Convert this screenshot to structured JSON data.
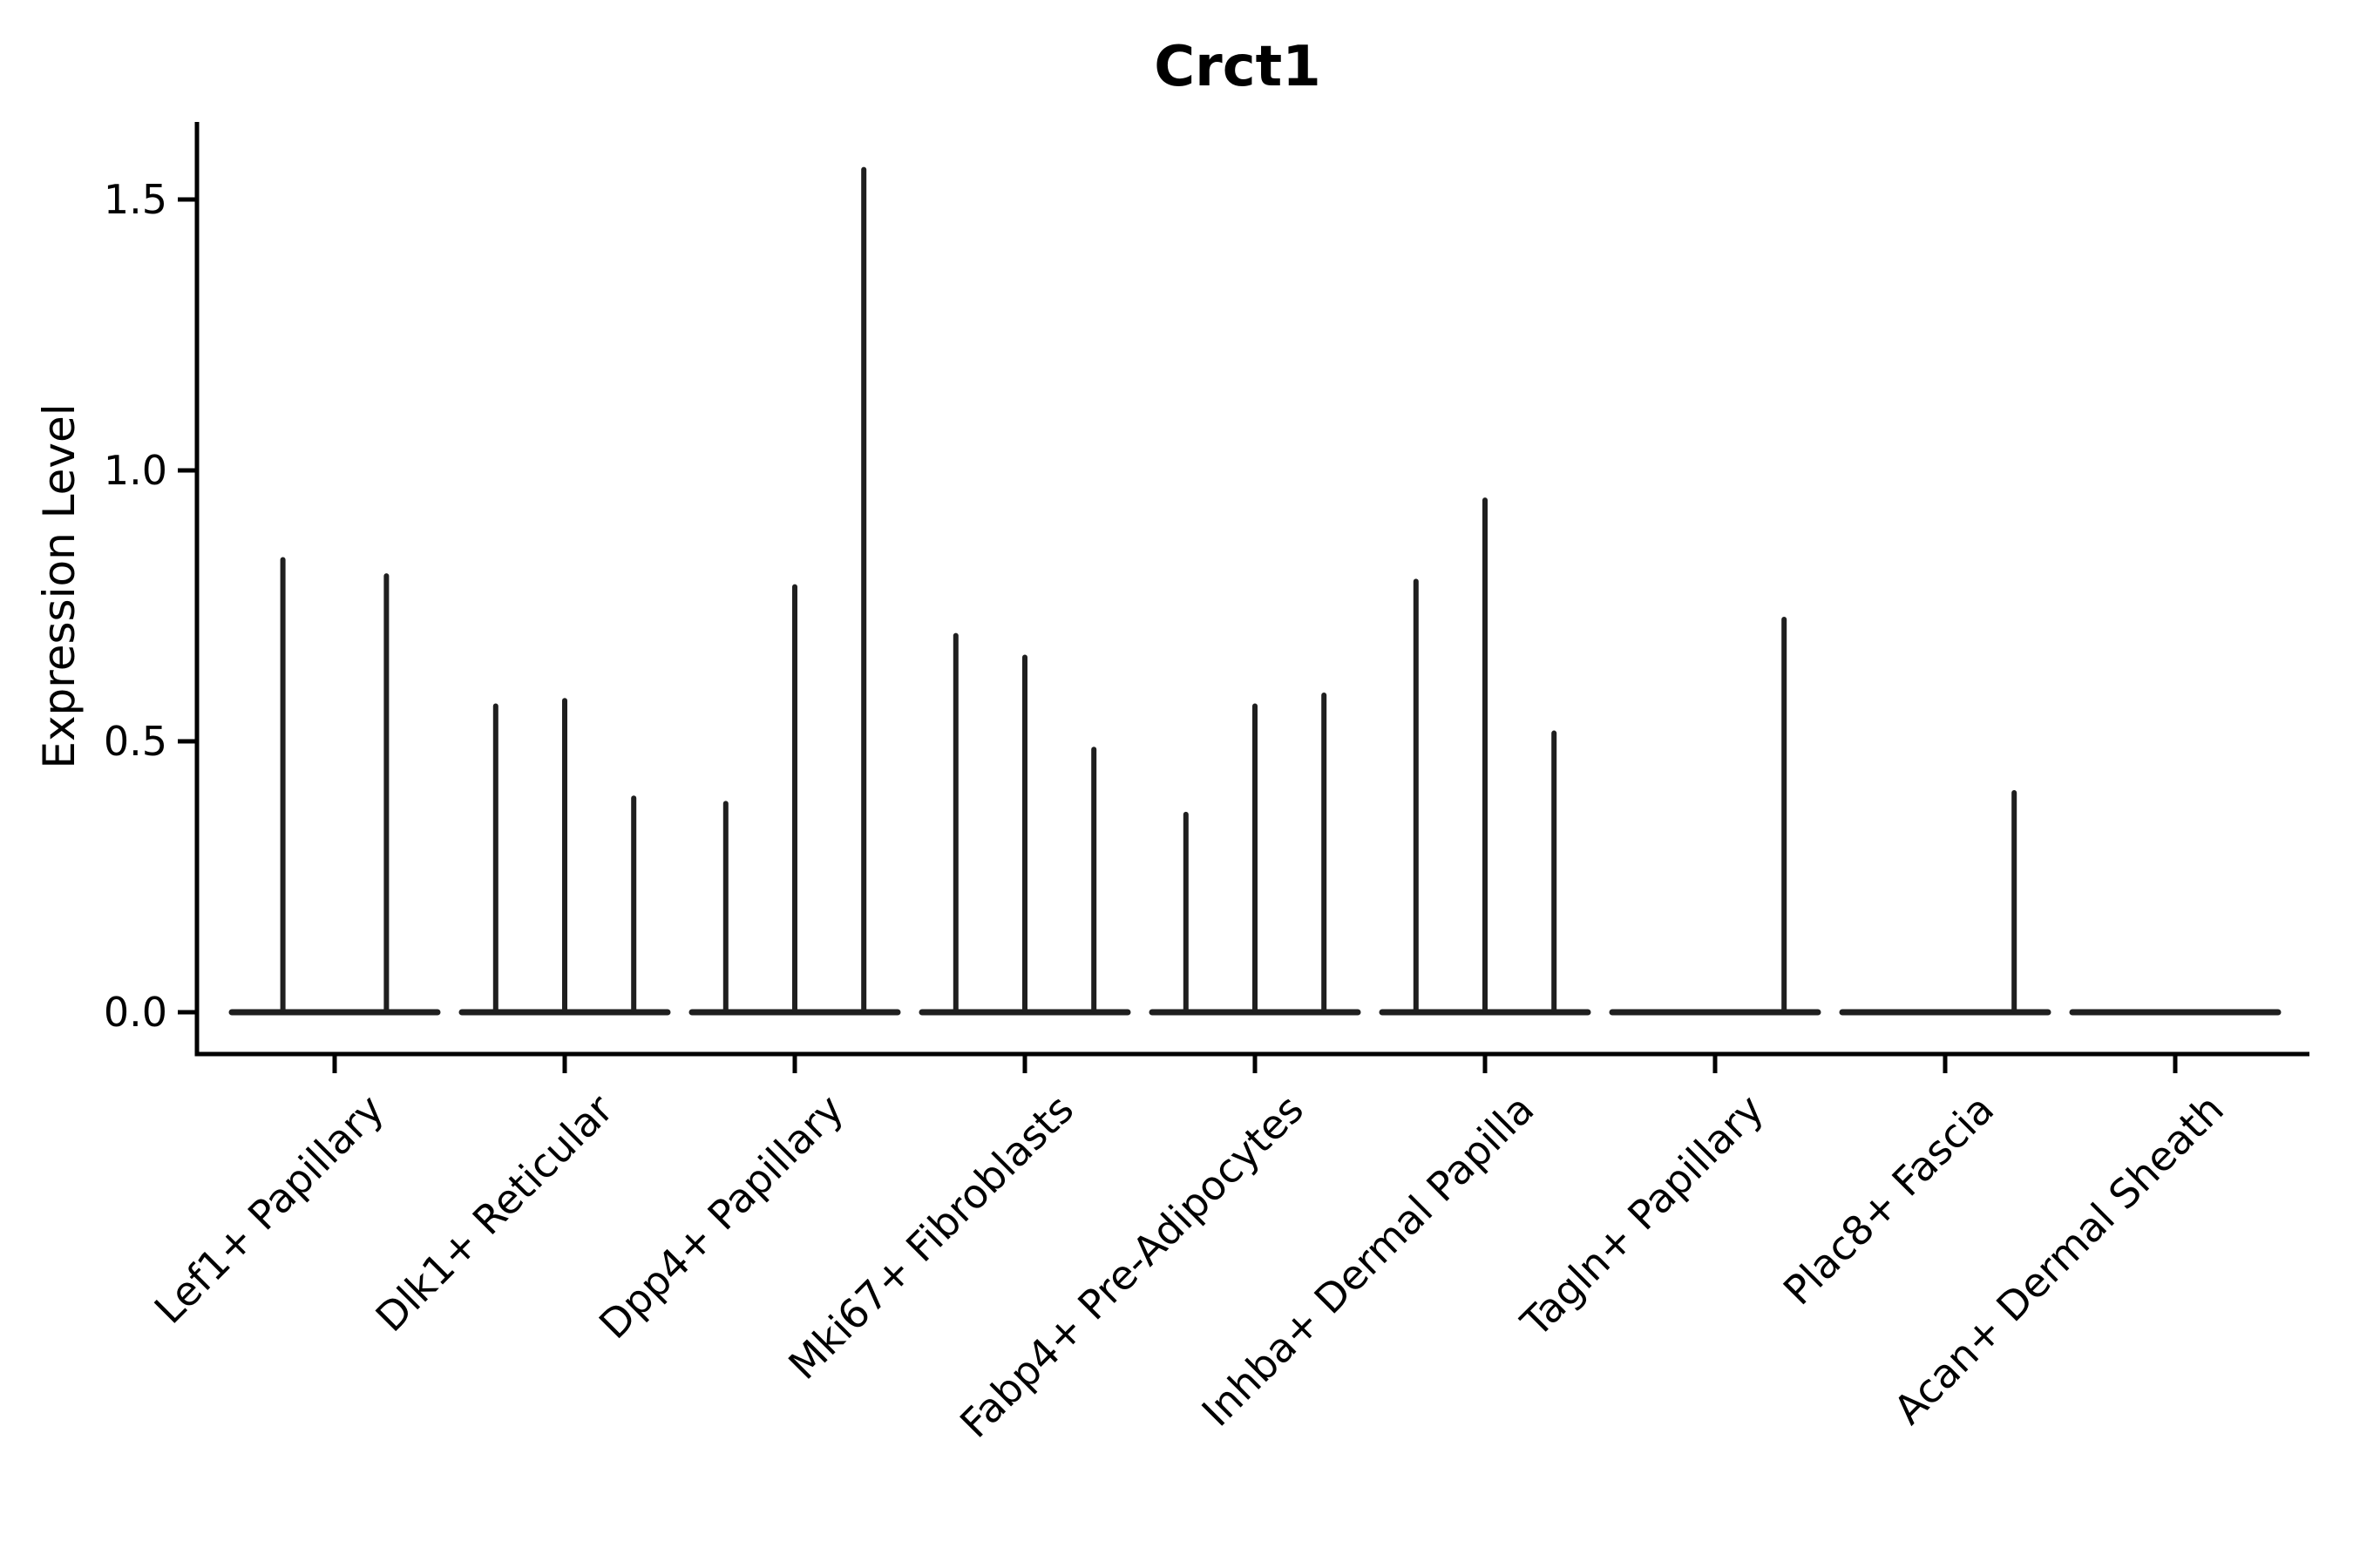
{
  "figure": {
    "background": "#ffffff"
  },
  "palette": {
    "axis_color": "#000000",
    "text_color": "#000000",
    "violin_stroke": "#1f1f1f"
  },
  "chart_data": {
    "type": "violin",
    "title": "Crct1",
    "xlabel": "",
    "ylabel": "Expression Level",
    "ylim": [
      -0.08,
      1.64
    ],
    "yticks": [
      0.0,
      0.5,
      1.0,
      1.5
    ],
    "ytick_labels": [
      "0.0",
      "0.5",
      "1.0",
      "1.5"
    ],
    "grid": false,
    "legend": "none",
    "categories": [
      "Lef1+ Papillary",
      "Dlk1+ Reticular",
      "Dpp4+ Papillary",
      "Mki67+ Fibroblasts",
      "Fabp4+ Pre-Adipocytes",
      "Inhba+ Dermal Papilla",
      "Tagln+ Papillary",
      "Plac8+ Fascia",
      "Acan+ Dermal Sheath"
    ],
    "violins": [
      {
        "category": "Lef1+ Papillary",
        "offsets": [
          -0.225,
          0.225
        ],
        "peaks": [
          0.84,
          0.81
        ]
      },
      {
        "category": "Dlk1+ Reticular",
        "offsets": [
          -0.3,
          0,
          0.3
        ],
        "peaks": [
          0.57,
          0.58,
          0.4
        ]
      },
      {
        "category": "Dpp4+ Papillary",
        "offsets": [
          -0.3,
          0,
          0.3
        ],
        "peaks": [
          0.39,
          0.79,
          1.56
        ]
      },
      {
        "category": "Mki67+ Fibroblasts",
        "offsets": [
          -0.3,
          0,
          0.3
        ],
        "peaks": [
          0.7,
          0.66,
          0.49
        ]
      },
      {
        "category": "Fabp4+ Pre-Adipocytes",
        "offsets": [
          -0.3,
          0,
          0.3
        ],
        "peaks": [
          0.37,
          0.57,
          0.59
        ]
      },
      {
        "category": "Inhba+ Dermal Papilla",
        "offsets": [
          -0.3,
          0,
          0.3
        ],
        "peaks": [
          0.8,
          0.95,
          0.52
        ]
      },
      {
        "category": "Tagln+ Papillary",
        "offsets": [
          -0.3,
          0,
          0.3
        ],
        "peaks": [
          0,
          0,
          0.73
        ]
      },
      {
        "category": "Plac8+ Fascia",
        "offsets": [
          -0.3,
          0,
          0.3
        ],
        "peaks": [
          0,
          0,
          0.41
        ]
      },
      {
        "category": "Acan+ Dermal Sheath",
        "offsets": [
          -0.3,
          0,
          0.3
        ],
        "peaks": [
          0,
          0,
          0
        ]
      }
    ],
    "note": "violins are collapsed to near-zero width; each category shows a flat baseline strip at 0 with thin spikes up to the peak expression value"
  }
}
